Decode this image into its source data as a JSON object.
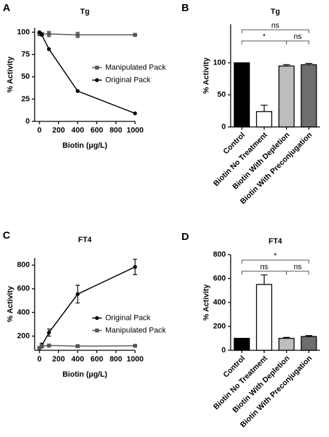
{
  "chart_data": [
    {
      "type": "line",
      "label": "A",
      "title": "Tg",
      "x_label": "Biotin (μg/L)",
      "y_label": "% Activity",
      "x": [
        0,
        25,
        100,
        400,
        1000
      ],
      "xlim": [
        -50,
        1000
      ],
      "xticks": [
        0,
        200,
        400,
        600,
        800,
        1000
      ],
      "ylim": [
        0,
        105
      ],
      "yticks": [
        0,
        25,
        50,
        75,
        100
      ],
      "legend": "right",
      "series": [
        {
          "name": "Manipulated Pack",
          "color": "#555555",
          "marker": "square",
          "values": [
            98,
            98,
            98,
            97,
            97
          ],
          "errors": [
            2,
            2,
            3,
            3,
            1
          ]
        },
        {
          "name": "Original Pack",
          "color": "#000000",
          "marker": "circle",
          "values": [
            100,
            97,
            81,
            34,
            9
          ],
          "errors": [
            0,
            0,
            0,
            0,
            0
          ]
        }
      ]
    },
    {
      "type": "bar",
      "label": "B",
      "title": "Tg",
      "y_label": "% Activity",
      "categories": [
        "Control",
        "Biotin No Treatment",
        "Biotin With Depletion",
        "Biotin With Preconjugation"
      ],
      "values": [
        100,
        24,
        95,
        97
      ],
      "errors": [
        0,
        10,
        2,
        2
      ],
      "colors": [
        "#000000",
        "#ffffff",
        "#bdbdbd",
        "#6e6e6e"
      ],
      "ylim": [
        0,
        160
      ],
      "yticks": [
        0,
        50,
        100
      ],
      "annotations": [
        {
          "text": "ns",
          "between": [
            "Control",
            "Biotin With Preconjugation"
          ]
        },
        {
          "text": "*",
          "between": [
            "Control",
            "Biotin With Depletion"
          ]
        },
        {
          "text": "ns",
          "between": [
            "Biotin With Depletion",
            "Biotin With Preconjugation"
          ]
        }
      ]
    },
    {
      "type": "line",
      "label": "C",
      "title": "FT4",
      "x_label": "Biotin (μg/L)",
      "y_label": "% Activity",
      "x": [
        0,
        25,
        100,
        400,
        1000
      ],
      "xlim": [
        -50,
        1000
      ],
      "xticks": [
        0,
        200,
        400,
        600,
        800,
        1000
      ],
      "ylim": [
        80,
        860
      ],
      "yticks": [
        200,
        400,
        600,
        800
      ],
      "legend": "right",
      "series": [
        {
          "name": "Original Pack",
          "color": "#000000",
          "marker": "circle",
          "values": [
            100,
            120,
            230,
            555,
            785
          ],
          "errors": [
            0,
            20,
            30,
            75,
            65
          ]
        },
        {
          "name": "Manipulated Pack",
          "color": "#555555",
          "marker": "square",
          "values": [
            100,
            115,
            120,
            115,
            118
          ],
          "errors": [
            0,
            5,
            5,
            5,
            5
          ]
        }
      ]
    },
    {
      "type": "bar",
      "label": "D",
      "title": "FT4",
      "y_label": "% Activity",
      "categories": [
        "Control",
        "Biotin No Treatment",
        "Biotin With Depletion",
        "Biotin With Preconjugation"
      ],
      "values": [
        100,
        550,
        100,
        115
      ],
      "errors": [
        0,
        80,
        8,
        8
      ],
      "colors": [
        "#000000",
        "#ffffff",
        "#bdbdbd",
        "#6e6e6e"
      ],
      "ylim": [
        0,
        800
      ],
      "yticks": [
        0,
        200,
        400,
        600,
        800
      ],
      "annotations": [
        {
          "text": "*",
          "between": [
            "Control",
            "Biotin With Preconjugation"
          ]
        },
        {
          "text": "ns",
          "between": [
            "Control",
            "Biotin With Depletion"
          ]
        },
        {
          "text": "ns",
          "between": [
            "Biotin With Depletion",
            "Biotin With Preconjugation"
          ]
        }
      ]
    }
  ]
}
